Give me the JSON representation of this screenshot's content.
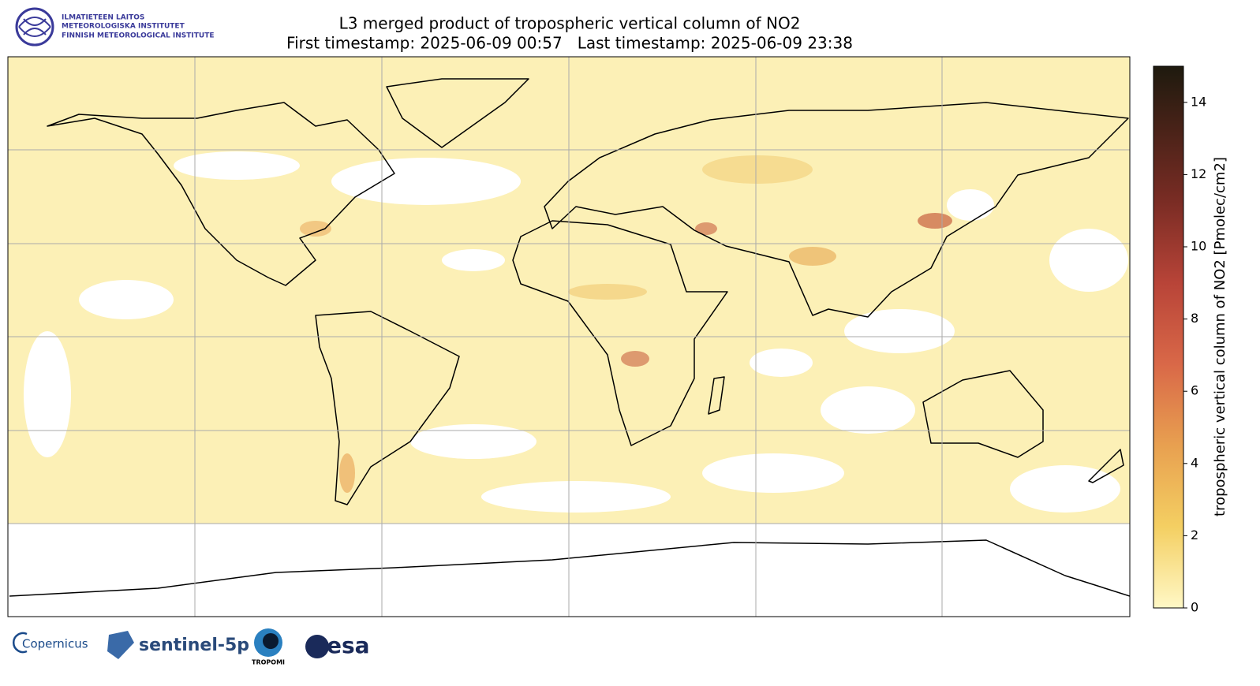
{
  "header": {
    "title": "L3 merged product of tropospheric vertical column of NO2",
    "subtitle": "First timestamp: 2025-06-09 00:57   Last timestamp: 2025-06-09 23:38",
    "institute": [
      "ILMATIETEEN LAITOS",
      "METEOROLOGISKA INSTITUTET",
      "FINNISH METEOROLOGICAL INSTITUTE"
    ]
  },
  "colorbar": {
    "label": "tropospheric vertical column of NO2 [Pmolec/cm2]",
    "lim": [
      0,
      15
    ],
    "ticks": [
      0,
      2,
      4,
      6,
      8,
      10,
      12,
      14
    ]
  },
  "footer": {
    "logos": [
      "Copernicus",
      "sentinel-5p",
      "TROPOMI",
      "esa"
    ]
  }
}
